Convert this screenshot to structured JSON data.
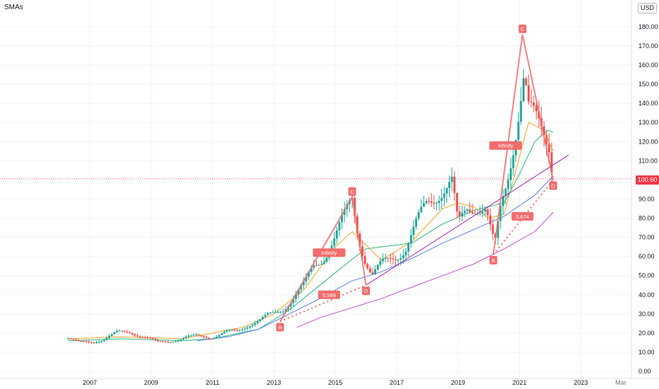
{
  "header": {
    "title": "SMAs",
    "currency": "USD"
  },
  "last_price_label": "100.60",
  "colors": {
    "up": "#26a69a",
    "down": "#ef5350",
    "pattern": "#f26c6c",
    "sma_short": "#f5a623",
    "sma_mid": "#2db37a",
    "sma_long": "#5b7fe8",
    "sma_longest": "#c44fd1",
    "trendline": "#9c27b0",
    "price_line": "#f23645"
  },
  "chart_data": {
    "type": "candlestick",
    "title": "SMAs",
    "ylim": [
      0,
      185
    ],
    "y_ticks": [
      0,
      10,
      20,
      30,
      40,
      50,
      60,
      70,
      80,
      90,
      100,
      110,
      120,
      130,
      140,
      150,
      160,
      170,
      180
    ],
    "y_tick_labels": [
      "0.00",
      "10.00",
      "20.00",
      "30.00",
      "40.00",
      "50.00",
      "60.00",
      "70.00",
      "80.00",
      "90.00",
      "100.00",
      "110.00",
      "120.00",
      "130.00",
      "140.00",
      "150.00",
      "160.00",
      "170.00",
      "180.00"
    ],
    "x_ticks": [
      2007,
      2009,
      2011,
      2013,
      2015,
      2017,
      2019,
      2021,
      2023
    ],
    "x_tick_labels": [
      "2007",
      "2009",
      "2011",
      "2013",
      "2015",
      "2017",
      "2019",
      "2021",
      "2023"
    ],
    "x_extra_label": "Mar",
    "last_price": 100.6,
    "close_anchors": [
      [
        2006.3,
        17
      ],
      [
        2006.6,
        15
      ],
      [
        2007.0,
        15.5
      ],
      [
        2007.5,
        17
      ],
      [
        2007.9,
        20
      ],
      [
        2008.3,
        21
      ],
      [
        2008.6,
        19
      ],
      [
        2008.9,
        17
      ],
      [
        2009.2,
        15
      ],
      [
        2009.6,
        16
      ],
      [
        2010.0,
        17
      ],
      [
        2010.5,
        18.5
      ],
      [
        2011.0,
        18
      ],
      [
        2011.4,
        20
      ],
      [
        2011.8,
        21
      ],
      [
        2012.2,
        25
      ],
      [
        2012.6,
        27
      ],
      [
        2013.0,
        30
      ],
      [
        2013.3,
        33
      ],
      [
        2013.7,
        40
      ],
      [
        2014.0,
        45
      ],
      [
        2014.3,
        55
      ],
      [
        2014.6,
        60
      ],
      [
        2015.0,
        70
      ],
      [
        2015.3,
        80
      ],
      [
        2015.55,
        90
      ],
      [
        2015.75,
        72
      ],
      [
        2015.95,
        60
      ],
      [
        2016.2,
        50
      ],
      [
        2016.5,
        55
      ],
      [
        2016.9,
        60
      ],
      [
        2017.3,
        65
      ],
      [
        2017.7,
        78
      ],
      [
        2018.0,
        88
      ],
      [
        2018.4,
        95
      ],
      [
        2018.8,
        98
      ],
      [
        2019.0,
        75
      ],
      [
        2019.3,
        85
      ],
      [
        2019.6,
        88
      ],
      [
        2019.9,
        85
      ],
      [
        2020.1,
        70
      ],
      [
        2020.2,
        64
      ],
      [
        2020.4,
        85
      ],
      [
        2020.6,
        100
      ],
      [
        2020.8,
        120
      ],
      [
        2021.0,
        140
      ],
      [
        2021.15,
        155
      ],
      [
        2021.3,
        135
      ],
      [
        2021.5,
        130
      ],
      [
        2021.8,
        125
      ],
      [
        2022.0,
        120
      ],
      [
        2022.1,
        100.6
      ]
    ],
    "series": [
      {
        "points": [
          [
            2006.3,
            17
          ],
          [
            2008.0,
            18
          ],
          [
            2010.0,
            17
          ],
          [
            2012.0,
            23
          ],
          [
            2013.0,
            30
          ],
          [
            2014.0,
            43
          ],
          [
            2015.0,
            65
          ],
          [
            2015.55,
            73
          ],
          [
            2016.0,
            66
          ],
          [
            2016.5,
            58
          ],
          [
            2017.5,
            68
          ],
          [
            2018.5,
            85
          ],
          [
            2019.0,
            88
          ],
          [
            2019.5,
            86
          ],
          [
            2020.0,
            80
          ],
          [
            2020.5,
            82
          ],
          [
            2021.0,
            112
          ],
          [
            2021.3,
            130
          ],
          [
            2021.8,
            126
          ],
          [
            2022.1,
            115
          ]
        ]
      },
      {
        "points": [
          [
            2006.3,
            16
          ],
          [
            2008.0,
            17
          ],
          [
            2010.0,
            16
          ],
          [
            2011.0,
            17
          ],
          [
            2012.5,
            22
          ],
          [
            2013.5,
            32
          ],
          [
            2014.5,
            45
          ],
          [
            2015.5,
            58
          ],
          [
            2016.0,
            64
          ],
          [
            2016.5,
            65
          ],
          [
            2017.5,
            67
          ],
          [
            2018.5,
            77
          ],
          [
            2019.5,
            84
          ],
          [
            2020.0,
            86
          ],
          [
            2020.5,
            88
          ],
          [
            2021.0,
            103
          ],
          [
            2021.5,
            120
          ],
          [
            2021.9,
            126
          ],
          [
            2022.1,
            125
          ]
        ]
      },
      {
        "points": [
          [
            2010.5,
            16
          ],
          [
            2011.5,
            18
          ],
          [
            2012.5,
            22
          ],
          [
            2013.5,
            30
          ],
          [
            2014.5,
            38
          ],
          [
            2015.5,
            47
          ],
          [
            2016.5,
            52
          ],
          [
            2017.5,
            59
          ],
          [
            2018.5,
            67
          ],
          [
            2019.5,
            74
          ],
          [
            2020.5,
            81
          ],
          [
            2021.5,
            92
          ],
          [
            2022.1,
            102
          ]
        ]
      },
      {
        "points": [
          [
            2013.75,
            23
          ],
          [
            2014.5,
            28
          ],
          [
            2015.5,
            33
          ],
          [
            2016.5,
            38
          ],
          [
            2017.5,
            44
          ],
          [
            2018.5,
            50
          ],
          [
            2019.5,
            56
          ],
          [
            2020.5,
            64
          ],
          [
            2021.5,
            73
          ],
          [
            2022.1,
            83
          ]
        ]
      }
    ],
    "trendline": [
      [
        2016.0,
        45
      ],
      [
        2022.6,
        113
      ]
    ],
    "pattern_1": {
      "points": [
        {
          "label": "B",
          "x": 2013.2,
          "y": 26
        },
        {
          "label": "C",
          "x": 2015.55,
          "y": 91
        },
        {
          "label": "D",
          "x": 2016.0,
          "y": 45
        }
      ],
      "ratio_label": "0.588",
      "ratio_at": [
        2014.8,
        40
      ],
      "ext_label": "Infinity",
      "ext_at": [
        2014.8,
        62
      ]
    },
    "pattern_2": {
      "points": [
        {
          "label": "B",
          "x": 2020.15,
          "y": 61
        },
        {
          "label": "C",
          "x": 2021.1,
          "y": 176
        },
        {
          "label": "D",
          "x": 2022.1,
          "y": 100
        }
      ],
      "ratio_label": "0.674",
      "ratio_at": [
        2021.1,
        81
      ],
      "ext_label": "Infinity",
      "ext_at": [
        2020.55,
        118
      ]
    }
  }
}
